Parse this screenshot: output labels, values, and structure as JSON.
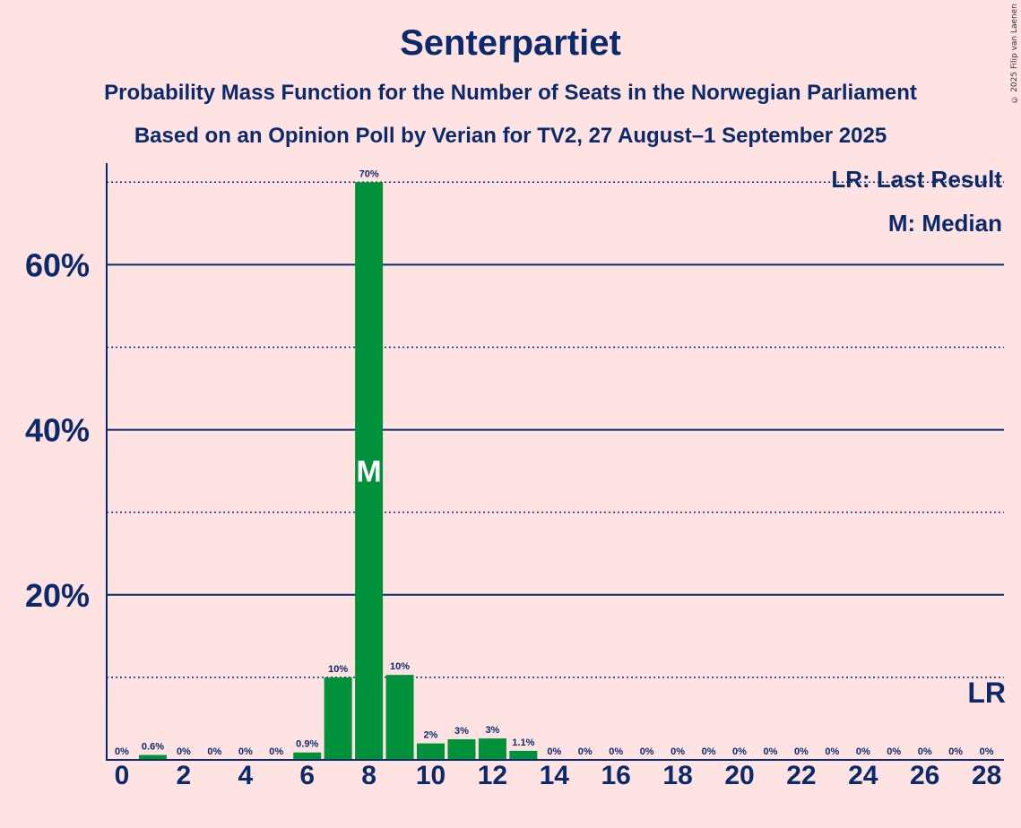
{
  "title": "Senterpartiet",
  "subtitle_1": "Probability Mass Function for the Number of Seats in the Norwegian Parliament",
  "subtitle_2": "Based on an Opinion Poll by Verian for TV2, 27 August–1 September 2025",
  "copyright": "© 2025 Filip van Laenen",
  "legend": {
    "last_result": "LR: Last Result",
    "median": "M: Median"
  },
  "colors": {
    "background": "#ffe3e3",
    "bar": "#00923a",
    "text": "#0b2a6b",
    "grid": "#0b2a6b"
  },
  "chart_data": {
    "type": "bar",
    "x": [
      0,
      1,
      2,
      3,
      4,
      5,
      6,
      7,
      8,
      9,
      10,
      11,
      12,
      13,
      14,
      15,
      16,
      17,
      18,
      19,
      20,
      21,
      22,
      23,
      24,
      25,
      26,
      27,
      28
    ],
    "values": [
      0,
      0.6,
      0,
      0,
      0,
      0,
      0.9,
      10,
      70,
      10.3,
      2,
      2.5,
      2.6,
      1.1,
      0,
      0,
      0,
      0,
      0,
      0,
      0,
      0,
      0,
      0,
      0,
      0,
      0,
      0,
      0
    ],
    "labels": [
      "0%",
      "0.6%",
      "0%",
      "0%",
      "0%",
      "0%",
      "0.9%",
      "10%",
      "70%",
      "10%",
      "2%",
      "3%",
      "3%",
      "1.1%",
      "0%",
      "0%",
      "0%",
      "0%",
      "0%",
      "0%",
      "0%",
      "0%",
      "0%",
      "0%",
      "0%",
      "0%",
      "0%",
      "0%",
      "0%"
    ],
    "x_ticks": [
      0,
      2,
      4,
      6,
      8,
      10,
      12,
      14,
      16,
      18,
      20,
      22,
      24,
      26,
      28
    ],
    "y_ticks": [
      20,
      40,
      60
    ],
    "y_tick_labels": [
      "20%",
      "40%",
      "60%"
    ],
    "y_dotted_lines": [
      10,
      30,
      50,
      70
    ],
    "ylim": [
      0,
      76
    ],
    "median_seat": 8,
    "median_marker": "M",
    "last_result_seat": 28,
    "last_result_marker": "LR",
    "legend_position": "top-right"
  }
}
